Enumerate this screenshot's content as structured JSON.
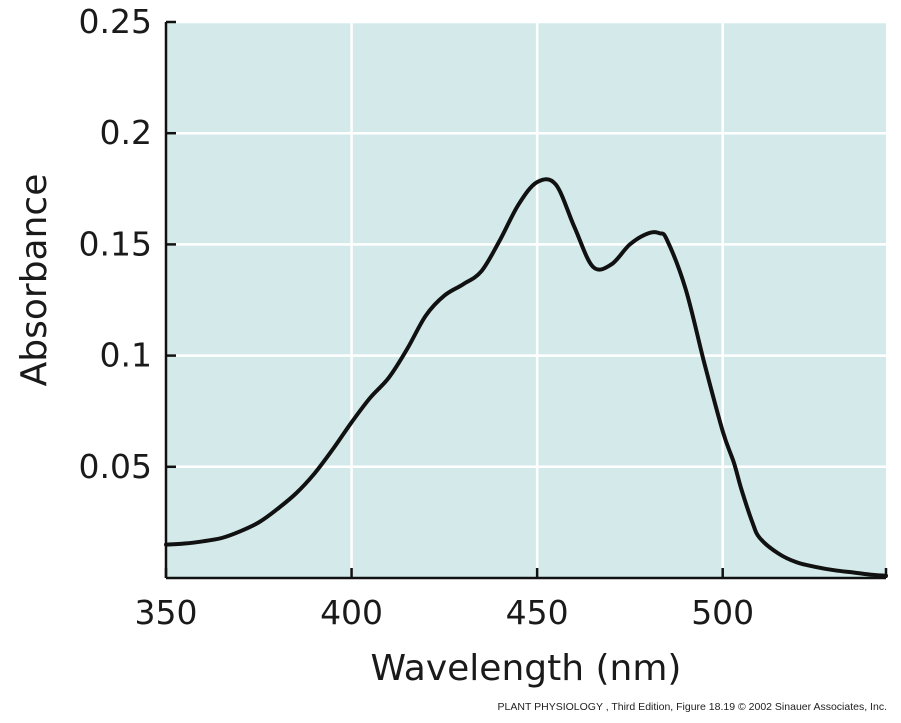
{
  "chart_data": {
    "type": "line",
    "title": "",
    "xlabel": "Wavelength (nm)",
    "ylabel": "Absorbance",
    "xlim": [
      350,
      544
    ],
    "ylim": [
      0.0,
      0.25
    ],
    "xticks": [
      350,
      400,
      450,
      500
    ],
    "xtick_labels": [
      "350",
      "400",
      "450",
      "500"
    ],
    "yticks": [
      0.05,
      0.1,
      0.15,
      0.2,
      0.25
    ],
    "ytick_labels": [
      "0.05",
      "0.1",
      "0.15",
      "0.2",
      "0.25"
    ],
    "grid": true,
    "legend": "none",
    "colors": {
      "plot_background": "#d4eaea",
      "grid": "#ffffff",
      "line": "#111111",
      "axis": "#111111"
    },
    "series": [
      {
        "x": [
          350,
          355,
          360,
          365,
          370,
          375,
          380,
          385,
          390,
          395,
          400,
          405,
          410,
          415,
          420,
          425,
          430,
          435,
          440,
          445,
          450,
          455,
          460,
          465,
          470,
          475,
          480,
          483,
          485,
          490,
          495,
          500,
          503,
          505,
          508,
          510,
          515,
          520,
          525,
          530,
          535,
          540,
          544
        ],
        "y": [
          0.015,
          0.0155,
          0.0165,
          0.018,
          0.021,
          0.025,
          0.031,
          0.038,
          0.047,
          0.058,
          0.07,
          0.081,
          0.09,
          0.103,
          0.118,
          0.127,
          0.132,
          0.138,
          0.152,
          0.168,
          0.178,
          0.177,
          0.158,
          0.14,
          0.141,
          0.15,
          0.155,
          0.155,
          0.152,
          0.13,
          0.097,
          0.066,
          0.052,
          0.04,
          0.025,
          0.018,
          0.011,
          0.007,
          0.005,
          0.0035,
          0.0025,
          0.0015,
          0.001
        ]
      }
    ]
  },
  "credit_text": "PLANT PHYSIOLOGY , Third Edition, Figure 18.19  © 2002 Sinauer Associates, Inc."
}
